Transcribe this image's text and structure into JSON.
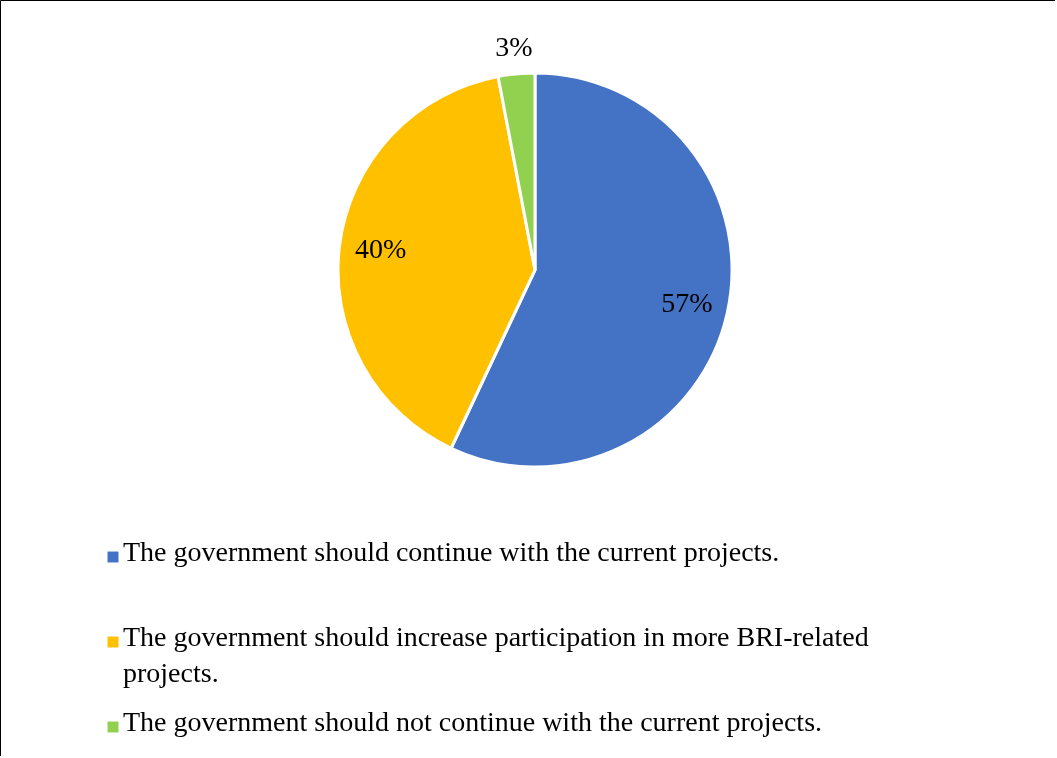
{
  "chart_data": {
    "type": "pie",
    "categories": [
      "The government should continue with the current projects.",
      "The government should increase participation in more BRI-related projects.",
      "The government should not continue with the current projects."
    ],
    "values": [
      57,
      40,
      3
    ],
    "colors": [
      "#4472c4",
      "#ffc000",
      "#92d050"
    ],
    "value_labels": [
      "57%",
      "40%",
      "3%"
    ],
    "legend": "bottom"
  }
}
